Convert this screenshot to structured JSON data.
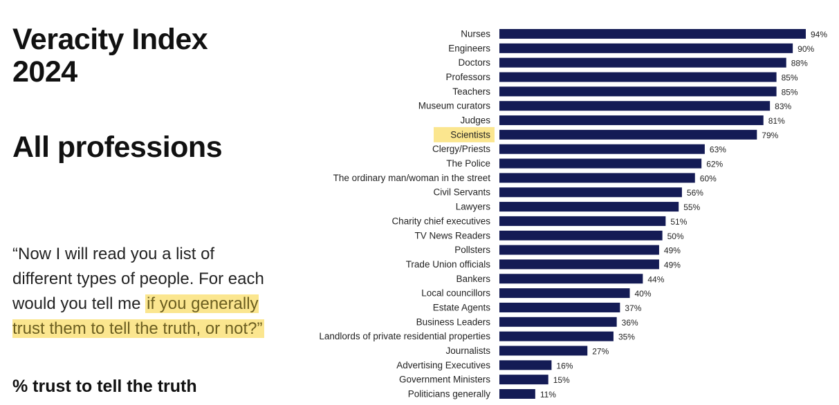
{
  "title": "Veracity Index 2024",
  "subtitle": "All professions",
  "question": {
    "before": "“Now I will read you a list of different types of people. For each would you tell me ",
    "highlighted": "if you generally trust them to tell the truth, or not?”"
  },
  "measure_label": "% trust to tell the truth",
  "colors": {
    "bar": "#141b55",
    "highlight": "#fbe68f"
  },
  "chart_data": {
    "type": "bar",
    "orientation": "horizontal",
    "highlighted_category": "Scientists",
    "categories": [
      "Nurses",
      "Engineers",
      "Doctors",
      "Professors",
      "Teachers",
      "Museum curators",
      "Judges",
      "Scientists",
      "Clergy/Priests",
      "The Police",
      "The ordinary man/woman in the street",
      "Civil Servants",
      "Lawyers",
      "Charity chief executives",
      "TV News Readers",
      "Pollsters",
      "Trade Union officials",
      "Bankers",
      "Local councillors",
      "Estate Agents",
      "Business Leaders",
      "Landlords of private residential properties",
      "Journalists",
      "Advertising Executives",
      "Government Ministers",
      "Politicians generally"
    ],
    "values": [
      94,
      90,
      88,
      85,
      85,
      83,
      81,
      79,
      63,
      62,
      60,
      56,
      55,
      51,
      50,
      49,
      49,
      44,
      40,
      37,
      36,
      35,
      27,
      16,
      15,
      11
    ],
    "value_labels": [
      "94%",
      "90%",
      "88%",
      "85%",
      "85%",
      "83%",
      "81%",
      "79%",
      "63%",
      "62%",
      "60%",
      "56%",
      "55%",
      "51%",
      "50%",
      "49%",
      "49%",
      "44%",
      "40%",
      "37%",
      "36%",
      "35%",
      "27%",
      "16%",
      "15%",
      "11%"
    ],
    "xlim": [
      0,
      100
    ],
    "grid": false
  }
}
